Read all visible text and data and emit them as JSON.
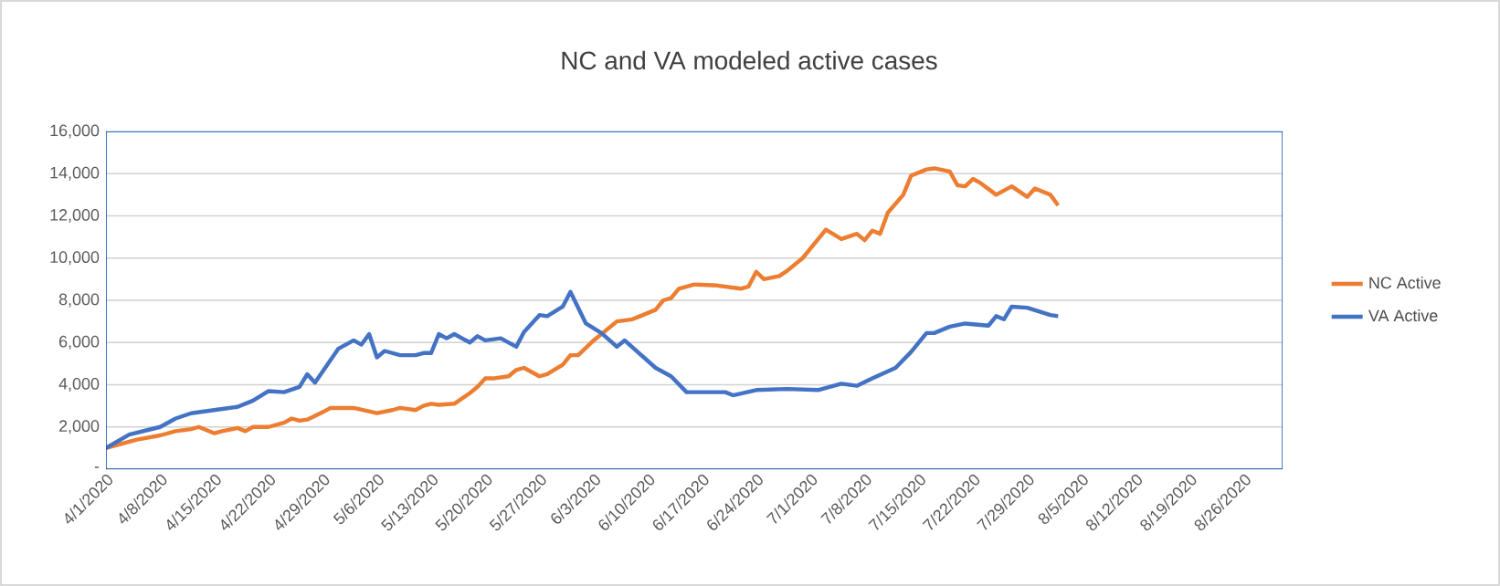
{
  "chart_data": {
    "type": "line",
    "title": "NC  and VA modeled active cases",
    "xlim": [
      "2020-04-01",
      "2020-08-31"
    ],
    "xticks": [
      {
        "value": "2020-04-01",
        "label": "4/1/2020"
      },
      {
        "value": "2020-04-08",
        "label": "4/8/2020"
      },
      {
        "value": "2020-04-15",
        "label": "4/15/2020"
      },
      {
        "value": "2020-04-22",
        "label": "4/22/2020"
      },
      {
        "value": "2020-04-29",
        "label": "4/29/2020"
      },
      {
        "value": "2020-05-06",
        "label": "5/6/2020"
      },
      {
        "value": "2020-05-13",
        "label": "5/13/2020"
      },
      {
        "value": "2020-05-20",
        "label": "5/20/2020"
      },
      {
        "value": "2020-05-27",
        "label": "5/27/2020"
      },
      {
        "value": "2020-06-03",
        "label": "6/3/2020"
      },
      {
        "value": "2020-06-10",
        "label": "6/10/2020"
      },
      {
        "value": "2020-06-17",
        "label": "6/17/2020"
      },
      {
        "value": "2020-06-24",
        "label": "6/24/2020"
      },
      {
        "value": "2020-07-01",
        "label": "7/1/2020"
      },
      {
        "value": "2020-07-08",
        "label": "7/8/2020"
      },
      {
        "value": "2020-07-15",
        "label": "7/15/2020"
      },
      {
        "value": "2020-07-22",
        "label": "7/22/2020"
      },
      {
        "value": "2020-07-29",
        "label": "7/29/2020"
      },
      {
        "value": "2020-08-05",
        "label": "8/5/2020"
      },
      {
        "value": "2020-08-12",
        "label": "8/12/2020"
      },
      {
        "value": "2020-08-19",
        "label": "8/19/2020"
      },
      {
        "value": "2020-08-26",
        "label": "8/26/2020"
      }
    ],
    "ylim": [
      0,
      16000
    ],
    "yticks": [
      {
        "value": 0,
        "label": "-"
      },
      {
        "value": 2000,
        "label": "2,000"
      },
      {
        "value": 4000,
        "label": "4,000"
      },
      {
        "value": 6000,
        "label": "6,000"
      },
      {
        "value": 8000,
        "label": "8,000"
      },
      {
        "value": 10000,
        "label": "10,000"
      },
      {
        "value": 12000,
        "label": "12,000"
      },
      {
        "value": 14000,
        "label": "14,000"
      },
      {
        "value": 16000,
        "label": "16,000"
      }
    ],
    "grid": "y",
    "legend": "right",
    "marker": "none",
    "line_style": "solid",
    "series": [
      {
        "name": "NC Active",
        "color": "#ed7d31",
        "x": [
          "2020-04-01",
          "2020-04-05",
          "2020-04-08",
          "2020-04-10",
          "2020-04-12",
          "2020-04-13",
          "2020-04-15",
          "2020-04-16",
          "2020-04-18",
          "2020-04-19",
          "2020-04-20",
          "2020-04-22",
          "2020-04-24",
          "2020-04-25",
          "2020-04-26",
          "2020-04-27",
          "2020-04-29",
          "2020-04-30",
          "2020-05-03",
          "2020-05-06",
          "2020-05-08",
          "2020-05-09",
          "2020-05-11",
          "2020-05-12",
          "2020-05-13",
          "2020-05-14",
          "2020-05-16",
          "2020-05-18",
          "2020-05-19",
          "2020-05-20",
          "2020-05-21",
          "2020-05-23",
          "2020-05-24",
          "2020-05-25",
          "2020-05-27",
          "2020-05-28",
          "2020-05-30",
          "2020-05-31",
          "2020-06-01",
          "2020-06-03",
          "2020-06-06",
          "2020-06-08",
          "2020-06-09",
          "2020-06-11",
          "2020-06-12",
          "2020-06-13",
          "2020-06-14",
          "2020-06-16",
          "2020-06-19",
          "2020-06-22",
          "2020-06-23",
          "2020-06-24",
          "2020-06-25",
          "2020-06-27",
          "2020-06-28",
          "2020-06-30",
          "2020-07-01",
          "2020-07-03",
          "2020-07-05",
          "2020-07-07",
          "2020-07-08",
          "2020-07-09",
          "2020-07-10",
          "2020-07-11",
          "2020-07-13",
          "2020-07-14",
          "2020-07-16",
          "2020-07-17",
          "2020-07-19",
          "2020-07-20",
          "2020-07-21",
          "2020-07-22",
          "2020-07-23",
          "2020-07-25",
          "2020-07-27",
          "2020-07-29",
          "2020-07-30",
          "2020-08-01",
          "2020-08-02"
        ],
        "values": [
          1000,
          1400,
          1600,
          1800,
          1900,
          2000,
          1700,
          1800,
          1950,
          1800,
          2000,
          2000,
          2200,
          2400,
          2300,
          2350,
          2700,
          2900,
          2900,
          2650,
          2800,
          2900,
          2800,
          3000,
          3100,
          3050,
          3100,
          3600,
          3900,
          4300,
          4300,
          4400,
          4700,
          4800,
          4400,
          4500,
          4950,
          5400,
          5400,
          6100,
          7000,
          7100,
          7250,
          7550,
          8000,
          8100,
          8550,
          8750,
          8700,
          8550,
          8650,
          9350,
          9000,
          9150,
          9400,
          10000,
          10450,
          11350,
          10900,
          11150,
          10850,
          11300,
          11150,
          12150,
          13000,
          13900,
          14200,
          14250,
          14100,
          13450,
          13400,
          13750,
          13550,
          13000,
          13400,
          12900,
          13300,
          13000,
          12500
        ]
      },
      {
        "name": "VA Active",
        "color": "#4472c4",
        "x": [
          "2020-04-01",
          "2020-04-04",
          "2020-04-08",
          "2020-04-10",
          "2020-04-12",
          "2020-04-15",
          "2020-04-18",
          "2020-04-20",
          "2020-04-22",
          "2020-04-24",
          "2020-04-26",
          "2020-04-27",
          "2020-04-28",
          "2020-05-01",
          "2020-05-03",
          "2020-05-04",
          "2020-05-05",
          "2020-05-06",
          "2020-05-07",
          "2020-05-09",
          "2020-05-11",
          "2020-05-12",
          "2020-05-13",
          "2020-05-14",
          "2020-05-15",
          "2020-05-16",
          "2020-05-18",
          "2020-05-19",
          "2020-05-20",
          "2020-05-22",
          "2020-05-24",
          "2020-05-25",
          "2020-05-27",
          "2020-05-28",
          "2020-05-30",
          "2020-05-31",
          "2020-06-02",
          "2020-06-04",
          "2020-06-06",
          "2020-06-07",
          "2020-06-11",
          "2020-06-13",
          "2020-06-15",
          "2020-06-20",
          "2020-06-21",
          "2020-06-24",
          "2020-06-28",
          "2020-07-02",
          "2020-07-05",
          "2020-07-07",
          "2020-07-09",
          "2020-07-12",
          "2020-07-14",
          "2020-07-16",
          "2020-07-17",
          "2020-07-19",
          "2020-07-21",
          "2020-07-24",
          "2020-07-25",
          "2020-07-26",
          "2020-07-27",
          "2020-07-29",
          "2020-08-01",
          "2020-08-02"
        ],
        "values": [
          1000,
          1640,
          2000,
          2400,
          2650,
          2800,
          2950,
          3250,
          3700,
          3650,
          3900,
          4500,
          4100,
          5700,
          6100,
          5900,
          6400,
          5300,
          5600,
          5400,
          5400,
          5500,
          5500,
          6400,
          6200,
          6400,
          6000,
          6300,
          6100,
          6200,
          5800,
          6500,
          7300,
          7250,
          7700,
          8400,
          6900,
          6450,
          5800,
          6100,
          4800,
          4400,
          3650,
          3650,
          3500,
          3750,
          3800,
          3750,
          4050,
          3950,
          4300,
          4800,
          5550,
          6450,
          6450,
          6750,
          6900,
          6800,
          7250,
          7100,
          7700,
          7650,
          7300,
          7250
        ]
      }
    ]
  }
}
